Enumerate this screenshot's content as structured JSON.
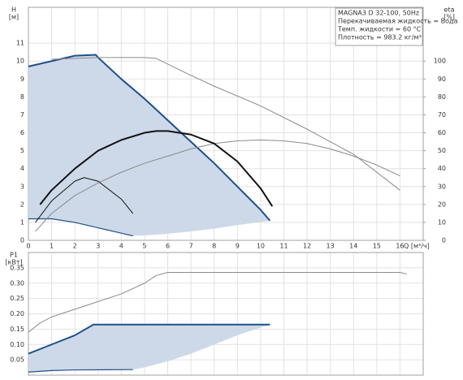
{
  "chart_data": [
    {
      "type": "line",
      "xlabel": "Q [м³/ч]",
      "ylabel": "H",
      "yunit": "[м]",
      "y2label": "eta",
      "y2unit": "[%]",
      "annotations": [
        "MAGNA3 D 32-100, 50Hz",
        "Перекачиваемая жидкость = Вода",
        "Темп. жидкости = 60 °C",
        "Плотность = 983.2 кг/м³"
      ],
      "xlim": [
        0,
        17
      ],
      "ylim": [
        0,
        13
      ],
      "y2lim": [
        0,
        130
      ],
      "xticks": [
        0,
        1,
        2,
        3,
        4,
        5,
        6,
        7,
        8,
        9,
        10,
        11,
        12,
        13,
        14,
        15,
        16
      ],
      "yticks": [
        0,
        1,
        2,
        3,
        4,
        5,
        6,
        7,
        8,
        9,
        10,
        11
      ],
      "y2ticks": [
        0,
        10,
        20,
        30,
        40,
        50,
        60,
        70,
        80,
        90,
        100
      ],
      "show_xtick_labels": true,
      "grid": true,
      "series": [
        {
          "fill": true,
          "color": "#cdd9e8",
          "x": [
            0,
            1,
            2,
            2.9,
            3,
            4,
            5,
            6,
            7,
            8,
            9,
            10,
            10.4,
            9,
            8,
            7,
            6,
            5,
            4.5,
            4,
            3,
            2,
            1,
            0
          ],
          "values": [
            9.7,
            10.0,
            10.3,
            10.35,
            10.2,
            9.0,
            7.9,
            6.7,
            5.5,
            4.3,
            3.0,
            1.7,
            1.1,
            0.85,
            0.65,
            0.5,
            0.37,
            0.27,
            0.25,
            0.4,
            0.7,
            1.0,
            1.2,
            1.2
          ]
        },
        {
          "color": "#1f4f8a",
          "width": 2,
          "x": [
            0,
            1,
            2,
            2.9,
            3,
            4,
            5,
            6,
            7,
            8,
            9,
            10,
            10.4
          ],
          "values": [
            9.7,
            10.0,
            10.3,
            10.35,
            10.2,
            9.0,
            7.9,
            6.7,
            5.5,
            4.3,
            3.0,
            1.7,
            1.1
          ]
        },
        {
          "color": "#1f4f8a",
          "width": 1.2,
          "x": [
            0,
            1,
            2,
            3,
            4,
            4.5
          ],
          "values": [
            1.2,
            1.2,
            1.0,
            0.7,
            0.4,
            0.25
          ]
        },
        {
          "color": "#8a8a8a",
          "width": 1,
          "x": [
            1,
            3,
            5,
            5.5,
            7,
            8,
            10,
            12,
            14,
            16
          ],
          "values": [
            10.1,
            10.2,
            10.2,
            10.15,
            9.2,
            8.6,
            7.5,
            6.2,
            4.8,
            2.8
          ]
        },
        {
          "color": "#8a8a8a",
          "width": 1,
          "axis": "y2",
          "x": [
            0.3,
            1,
            2,
            3,
            4,
            5,
            6,
            7,
            8,
            9,
            10,
            11,
            12,
            13,
            14,
            15,
            16
          ],
          "values": [
            5,
            15,
            25,
            32,
            38,
            43,
            47,
            51,
            54,
            55.5,
            56,
            55.5,
            54,
            51,
            47,
            42,
            36
          ]
        },
        {
          "color": "#111111",
          "width": 2,
          "axis": "y2",
          "x": [
            0.5,
            1,
            2,
            3,
            4,
            5,
            5.5,
            6,
            7,
            8,
            9,
            10,
            10.5
          ],
          "values": [
            20,
            28,
            40,
            50,
            56,
            60,
            61,
            61,
            59,
            54,
            44,
            29,
            19
          ]
        },
        {
          "color": "#111111",
          "width": 1,
          "axis": "y2",
          "x": [
            0.3,
            1,
            2,
            2.4,
            3,
            4,
            4.5
          ],
          "values": [
            10,
            22,
            33,
            35,
            33,
            23,
            15
          ]
        }
      ]
    },
    {
      "type": "line",
      "ylabel": "P1",
      "yunit": "[кВт]",
      "xlim": [
        0,
        17
      ],
      "ylim": [
        0,
        0.4
      ],
      "xticks": [
        0,
        1,
        2,
        3,
        4,
        5,
        6,
        7,
        8,
        9,
        10,
        11,
        12,
        13,
        14,
        15,
        16
      ],
      "yticks": [
        0.05,
        {
          "value": 0.1,
          "label": "0.10"
        },
        0.15,
        {
          "value": 0.2,
          "label": "0.20"
        },
        0.25,
        {
          "value": 0.3,
          "label": "0.30"
        },
        0.35
      ],
      "show_xtick_labels": false,
      "grid": true,
      "series": [
        {
          "fill": true,
          "color": "#cdd9e8",
          "x": [
            0,
            1,
            2,
            2.8,
            3,
            10.4,
            9,
            8,
            7,
            6,
            5,
            4.5,
            2,
            1,
            0
          ],
          "values": [
            0.07,
            0.1,
            0.13,
            0.165,
            0.165,
            0.165,
            0.13,
            0.1,
            0.07,
            0.045,
            0.025,
            0.018,
            0.017,
            0.015,
            0.01
          ]
        },
        {
          "color": "#1f4f8a",
          "width": 2,
          "x": [
            0,
            1,
            2,
            2.8,
            3,
            10.4
          ],
          "values": [
            0.07,
            0.1,
            0.13,
            0.165,
            0.165,
            0.165
          ]
        },
        {
          "color": "#1f4f8a",
          "width": 1.2,
          "x": [
            0,
            1,
            2,
            4.5
          ],
          "values": [
            0.01,
            0.015,
            0.017,
            0.018
          ]
        },
        {
          "color": "#8a8a8a",
          "width": 1,
          "x": [
            0,
            0.5,
            1,
            2,
            3,
            4,
            5,
            5.5,
            6,
            7,
            16,
            16.3
          ],
          "values": [
            0.14,
            0.17,
            0.19,
            0.215,
            0.24,
            0.265,
            0.3,
            0.325,
            0.335,
            0.335,
            0.335,
            0.33
          ]
        }
      ]
    }
  ]
}
